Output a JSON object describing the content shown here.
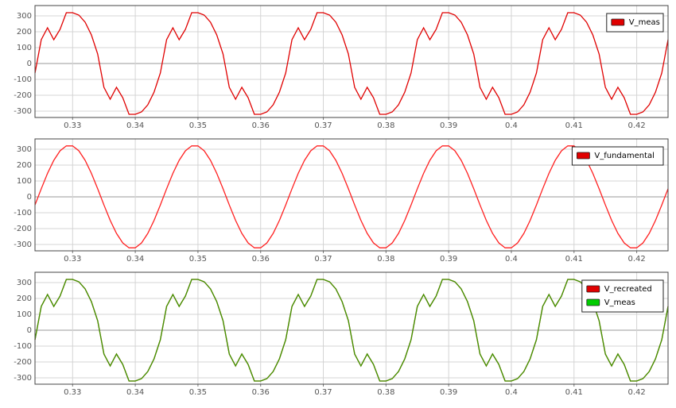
{
  "chart_data": [
    {
      "type": "line",
      "x": [
        0.324,
        0.325,
        0.326,
        0.327,
        0.328,
        0.329,
        0.33,
        0.331,
        0.332,
        0.333,
        0.334,
        0.335,
        0.336,
        0.337,
        0.338,
        0.339,
        0.34,
        0.341,
        0.342,
        0.343,
        0.344,
        0.345,
        0.346,
        0.347,
        0.348,
        0.349,
        0.35,
        0.351,
        0.352,
        0.353,
        0.354,
        0.355,
        0.356,
        0.357,
        0.358,
        0.359,
        0.36,
        0.361,
        0.362,
        0.363,
        0.364,
        0.365,
        0.366,
        0.367,
        0.368,
        0.369,
        0.37,
        0.371,
        0.372,
        0.373,
        0.374,
        0.375,
        0.376,
        0.377,
        0.378,
        0.379,
        0.38,
        0.381,
        0.382,
        0.383,
        0.384,
        0.385,
        0.386,
        0.387,
        0.388,
        0.389,
        0.39,
        0.391,
        0.392,
        0.393,
        0.394,
        0.395,
        0.396,
        0.397,
        0.398,
        0.399,
        0.4,
        0.401,
        0.402,
        0.403,
        0.404,
        0.405,
        0.406,
        0.407,
        0.408,
        0.409,
        0.41,
        0.411,
        0.412,
        0.413,
        0.414,
        0.415,
        0.416,
        0.417,
        0.418,
        0.419,
        0.42,
        0.421,
        0.422,
        0.423,
        0.424,
        0.425
      ],
      "series": [
        {
          "name": "V_meas",
          "color": "#e00000",
          "values": [
            -60,
            150,
            225,
            150,
            215,
            320,
            320,
            305,
            260,
            180,
            60,
            -150,
            -225,
            -150,
            -215,
            -320,
            -320,
            -305,
            -260,
            -180,
            -60,
            150,
            225,
            150,
            215,
            320,
            320,
            305,
            260,
            180,
            60,
            -150,
            -225,
            -150,
            -215,
            -320,
            -320,
            -305,
            -260,
            -180,
            -60,
            150,
            225,
            150,
            215,
            320,
            320,
            305,
            260,
            180,
            60,
            -150,
            -225,
            -150,
            -215,
            -320,
            -320,
            -305,
            -260,
            -180,
            -60,
            150,
            225,
            150,
            215,
            320,
            320,
            305,
            260,
            180,
            60,
            -150,
            -225,
            -150,
            -215,
            -320,
            -320,
            -305,
            -260,
            -180,
            -60,
            150,
            225,
            150,
            215,
            320,
            320,
            305,
            260,
            180,
            60,
            -150,
            -225,
            -150,
            -215,
            -320,
            -320,
            -305,
            -260,
            -180,
            -60,
            150
          ]
        }
      ],
      "xlim": [
        0.324,
        0.425
      ],
      "xticks": [
        0.33,
        0.34,
        0.35,
        0.36,
        0.37,
        0.38,
        0.39,
        0.4,
        0.41,
        0.42
      ],
      "ylim": [
        -340,
        365
      ],
      "yticks": [
        -300,
        -200,
        -100,
        0,
        100,
        200,
        300
      ],
      "grid": true,
      "legend": "top-right"
    },
    {
      "type": "line",
      "x": [
        0.324,
        0.325,
        0.326,
        0.327,
        0.328,
        0.329,
        0.33,
        0.331,
        0.332,
        0.333,
        0.334,
        0.335,
        0.336,
        0.337,
        0.338,
        0.339,
        0.34,
        0.341,
        0.342,
        0.343,
        0.344,
        0.345,
        0.346,
        0.347,
        0.348,
        0.349,
        0.35,
        0.351,
        0.352,
        0.353,
        0.354,
        0.355,
        0.356,
        0.357,
        0.358,
        0.359,
        0.36,
        0.361,
        0.362,
        0.363,
        0.364,
        0.365,
        0.366,
        0.367,
        0.368,
        0.369,
        0.37,
        0.371,
        0.372,
        0.373,
        0.374,
        0.375,
        0.376,
        0.377,
        0.378,
        0.379,
        0.38,
        0.381,
        0.382,
        0.383,
        0.384,
        0.385,
        0.386,
        0.387,
        0.388,
        0.389,
        0.39,
        0.391,
        0.392,
        0.393,
        0.394,
        0.395,
        0.396,
        0.397,
        0.398,
        0.399,
        0.4,
        0.401,
        0.402,
        0.403,
        0.404,
        0.405,
        0.406,
        0.407,
        0.408,
        0.409,
        0.41,
        0.411,
        0.412,
        0.413,
        0.414,
        0.415,
        0.416,
        0.417,
        0.418,
        0.419,
        0.42,
        0.421,
        0.422,
        0.423,
        0.424,
        0.425
      ],
      "series": [
        {
          "name": "V_fundamental",
          "color": "#ff2020",
          "values": [
            -51,
            51,
            148,
            230,
            290,
            321,
            321,
            290,
            230,
            148,
            51,
            -51,
            -148,
            -230,
            -290,
            -321,
            -321,
            -290,
            -230,
            -148,
            -51,
            51,
            148,
            230,
            290,
            321,
            321,
            290,
            230,
            148,
            51,
            -51,
            -148,
            -230,
            -290,
            -321,
            -321,
            -290,
            -230,
            -148,
            -51,
            51,
            148,
            230,
            290,
            321,
            321,
            290,
            230,
            148,
            51,
            -51,
            -148,
            -230,
            -290,
            -321,
            -321,
            -290,
            -230,
            -148,
            -51,
            51,
            148,
            230,
            290,
            321,
            321,
            290,
            230,
            148,
            51,
            -51,
            -148,
            -230,
            -290,
            -321,
            -321,
            -290,
            -230,
            -148,
            -51,
            51,
            148,
            230,
            290,
            321,
            321,
            290,
            230,
            148,
            51,
            -51,
            -148,
            -230,
            -290,
            -321,
            -321,
            -290,
            -230,
            -148,
            -51,
            51
          ]
        }
      ],
      "xlim": [
        0.324,
        0.425
      ],
      "xticks": [
        0.33,
        0.34,
        0.35,
        0.36,
        0.37,
        0.38,
        0.39,
        0.4,
        0.41,
        0.42
      ],
      "ylim": [
        -340,
        365
      ],
      "yticks": [
        -300,
        -200,
        -100,
        0,
        100,
        200,
        300
      ],
      "grid": true,
      "legend": "top-right"
    },
    {
      "type": "line",
      "x": [
        0.324,
        0.325,
        0.326,
        0.327,
        0.328,
        0.329,
        0.33,
        0.331,
        0.332,
        0.333,
        0.334,
        0.335,
        0.336,
        0.337,
        0.338,
        0.339,
        0.34,
        0.341,
        0.342,
        0.343,
        0.344,
        0.345,
        0.346,
        0.347,
        0.348,
        0.349,
        0.35,
        0.351,
        0.352,
        0.353,
        0.354,
        0.355,
        0.356,
        0.357,
        0.358,
        0.359,
        0.36,
        0.361,
        0.362,
        0.363,
        0.364,
        0.365,
        0.366,
        0.367,
        0.368,
        0.369,
        0.37,
        0.371,
        0.372,
        0.373,
        0.374,
        0.375,
        0.376,
        0.377,
        0.378,
        0.379,
        0.38,
        0.381,
        0.382,
        0.383,
        0.384,
        0.385,
        0.386,
        0.387,
        0.388,
        0.389,
        0.39,
        0.391,
        0.392,
        0.393,
        0.394,
        0.395,
        0.396,
        0.397,
        0.398,
        0.399,
        0.4,
        0.401,
        0.402,
        0.403,
        0.404,
        0.405,
        0.406,
        0.407,
        0.408,
        0.409,
        0.41,
        0.411,
        0.412,
        0.413,
        0.414,
        0.415,
        0.416,
        0.417,
        0.418,
        0.419,
        0.42,
        0.421,
        0.422,
        0.423,
        0.424,
        0.425
      ],
      "series": [
        {
          "name": "V_recreated",
          "color": "#e00000",
          "values": [
            -60,
            150,
            225,
            150,
            215,
            320,
            320,
            305,
            260,
            180,
            60,
            -150,
            -225,
            -150,
            -215,
            -320,
            -320,
            -305,
            -260,
            -180,
            -60,
            150,
            225,
            150,
            215,
            320,
            320,
            305,
            260,
            180,
            60,
            -150,
            -225,
            -150,
            -215,
            -320,
            -320,
            -305,
            -260,
            -180,
            -60,
            150,
            225,
            150,
            215,
            320,
            320,
            305,
            260,
            180,
            60,
            -150,
            -225,
            -150,
            -215,
            -320,
            -320,
            -305,
            -260,
            -180,
            -60,
            150,
            225,
            150,
            215,
            320,
            320,
            305,
            260,
            180,
            60,
            -150,
            -225,
            -150,
            -215,
            -320,
            -320,
            -305,
            -260,
            -180,
            -60,
            150,
            225,
            150,
            215,
            320,
            320,
            305,
            260,
            180,
            60,
            -150,
            -225,
            -150,
            -215,
            -320,
            -320,
            -305,
            -260,
            -180,
            -60,
            150
          ]
        },
        {
          "name": "V_meas",
          "color": "#3a9a00",
          "values": [
            -60,
            150,
            225,
            150,
            215,
            320,
            320,
            305,
            260,
            180,
            60,
            -150,
            -225,
            -150,
            -215,
            -320,
            -320,
            -305,
            -260,
            -180,
            -60,
            150,
            225,
            150,
            215,
            320,
            320,
            305,
            260,
            180,
            60,
            -150,
            -225,
            -150,
            -215,
            -320,
            -320,
            -305,
            -260,
            -180,
            -60,
            150,
            225,
            150,
            215,
            320,
            320,
            305,
            260,
            180,
            60,
            -150,
            -225,
            -150,
            -215,
            -320,
            -320,
            -305,
            -260,
            -180,
            -60,
            150,
            225,
            150,
            215,
            320,
            320,
            305,
            260,
            180,
            60,
            -150,
            -225,
            -150,
            -215,
            -320,
            -320,
            -305,
            -260,
            -180,
            -60,
            150,
            225,
            150,
            215,
            320,
            320,
            305,
            260,
            180,
            60,
            -150,
            -225,
            -150,
            -215,
            -320,
            -320,
            -305,
            -260,
            -180,
            -60,
            150
          ]
        }
      ],
      "xlim": [
        0.324,
        0.425
      ],
      "xticks": [
        0.33,
        0.34,
        0.35,
        0.36,
        0.37,
        0.38,
        0.39,
        0.4,
        0.41,
        0.42
      ],
      "ylim": [
        -340,
        365
      ],
      "yticks": [
        -300,
        -200,
        -100,
        0,
        100,
        200,
        300
      ],
      "grid": true,
      "legend": "top-right"
    }
  ]
}
